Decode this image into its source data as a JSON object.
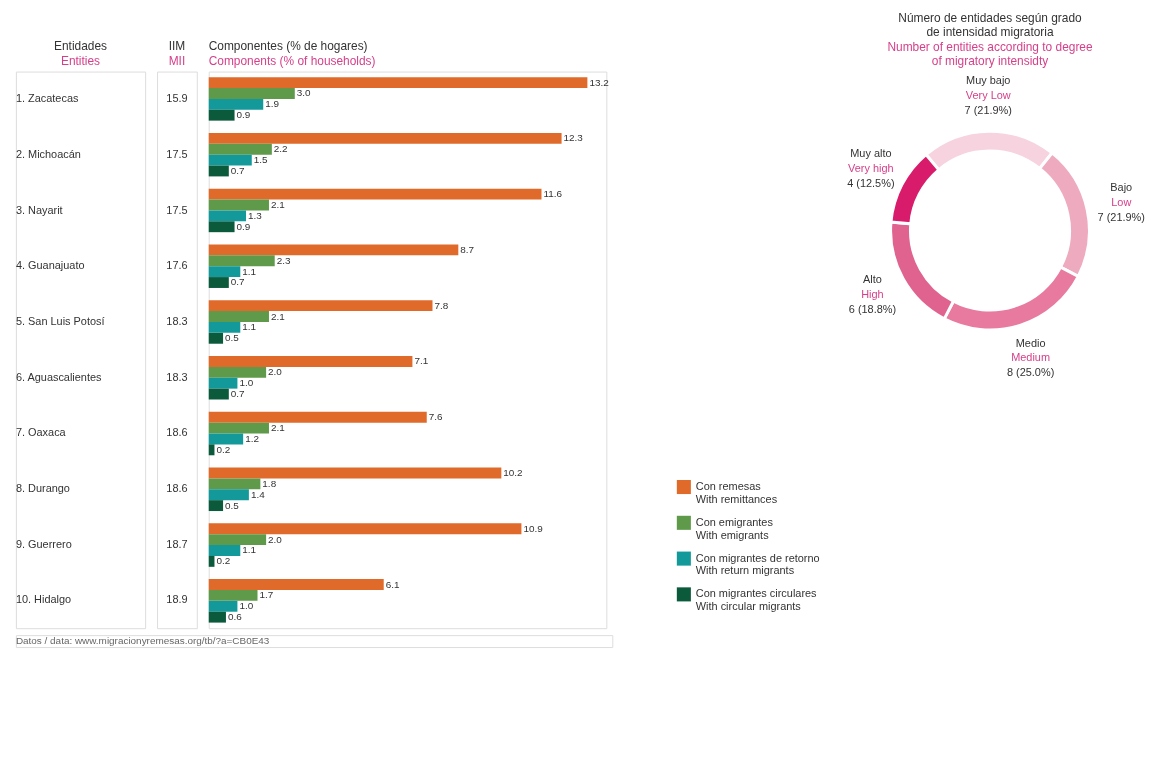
{
  "chart_data": [
    {
      "type": "bar",
      "orientation": "horizontal",
      "title": "Componentes (% de hogares)",
      "subtitle": "Components (% of households)",
      "ylabel": "Entidades",
      "categories": [
        "1. Zacatecas",
        "2. Michoacán",
        "3. Nayarit",
        "4. Guanajuato",
        "5. San Luis Potosí",
        "6. Aguascalientes",
        "7. Oaxaca",
        "8. Durango",
        "9. Guerrero",
        "10. Hidalgo"
      ],
      "series": [
        {
          "name": "Con remesas\nWith remittances",
          "color": "#e06a2a",
          "values": [
            13.2,
            12.3,
            11.6,
            8.7,
            7.8,
            7.1,
            7.6,
            10.2,
            10.9,
            6.1
          ],
          "value_labels": [
            "13.2",
            "12.3",
            "11.6",
            "8.7",
            "7.8",
            "7.1",
            "7.6",
            "10.2",
            "10.9",
            "6.1"
          ]
        },
        {
          "name": "Con emigrantes\nWith emigrants",
          "color": "#5f9a4a",
          "values": [
            3.0,
            2.2,
            2.1,
            2.3,
            2.1,
            2.0,
            2.1,
            1.8,
            2.0,
            1.7
          ],
          "value_labels": [
            "3.0",
            "2.2",
            "2.1",
            "2.3",
            "2.1",
            "2.0",
            "2.1",
            "1.8",
            "2.0",
            "1.7"
          ]
        },
        {
          "name": "Con migrantes de retorno\nWith return migrants",
          "color": "#14999a",
          "values": [
            1.9,
            1.5,
            1.3,
            1.1,
            1.1,
            1.0,
            1.2,
            1.4,
            1.1,
            1.0
          ],
          "value_labels": [
            "1.9",
            "1.5",
            "1.3",
            "1.1",
            "1.1",
            "1.0",
            "1.2",
            "1.4",
            "1.1",
            "1.0"
          ]
        },
        {
          "name": "Con migrantes circulares\nWith circular migrants",
          "color": "#0b5a3c",
          "values": [
            0.9,
            0.7,
            0.9,
            0.7,
            0.5,
            0.7,
            0.2,
            0.5,
            0.2,
            0.6
          ],
          "value_labels": [
            "0.9",
            "0.7",
            "0.9",
            "0.7",
            "0.5",
            "0.7",
            "0.2",
            "0.5",
            "0.2",
            "0.6"
          ]
        }
      ],
      "legend": "bottom right",
      "annotations": [
        "Entities",
        "IIM",
        "MII",
        "15.9",
        "17.5",
        "17.5",
        "17.6",
        "18.3",
        "18.3",
        "18.6",
        "18.6",
        "18.7",
        "18.9",
        "Datos / data: www.migracionyremesas.org/tb/?a=CB0E43"
      ]
    },
    {
      "type": "donut",
      "title": "Número de entidades según grado\nde intensidad migratoria",
      "subtitle": "Number of entities according to degree\nof migratory intensidty",
      "categories": [
        "Muy bajo\nVery Low",
        "Bajo\nLow",
        "Medio\nMedium",
        "Alto\nHigh",
        "Muy alto\nVery high"
      ],
      "values": [
        7,
        7,
        8,
        6,
        4
      ],
      "value_labels": [
        "7 (21.9%)",
        "7 (21.9%)",
        "8 (25.0%)",
        "6 (18.8%)",
        "4 (12.5%)"
      ],
      "colors": [
        "#f6d3de",
        "#eeaabf",
        "#e8799f",
        "#e0638f",
        "#d81b6a"
      ]
    }
  ]
}
